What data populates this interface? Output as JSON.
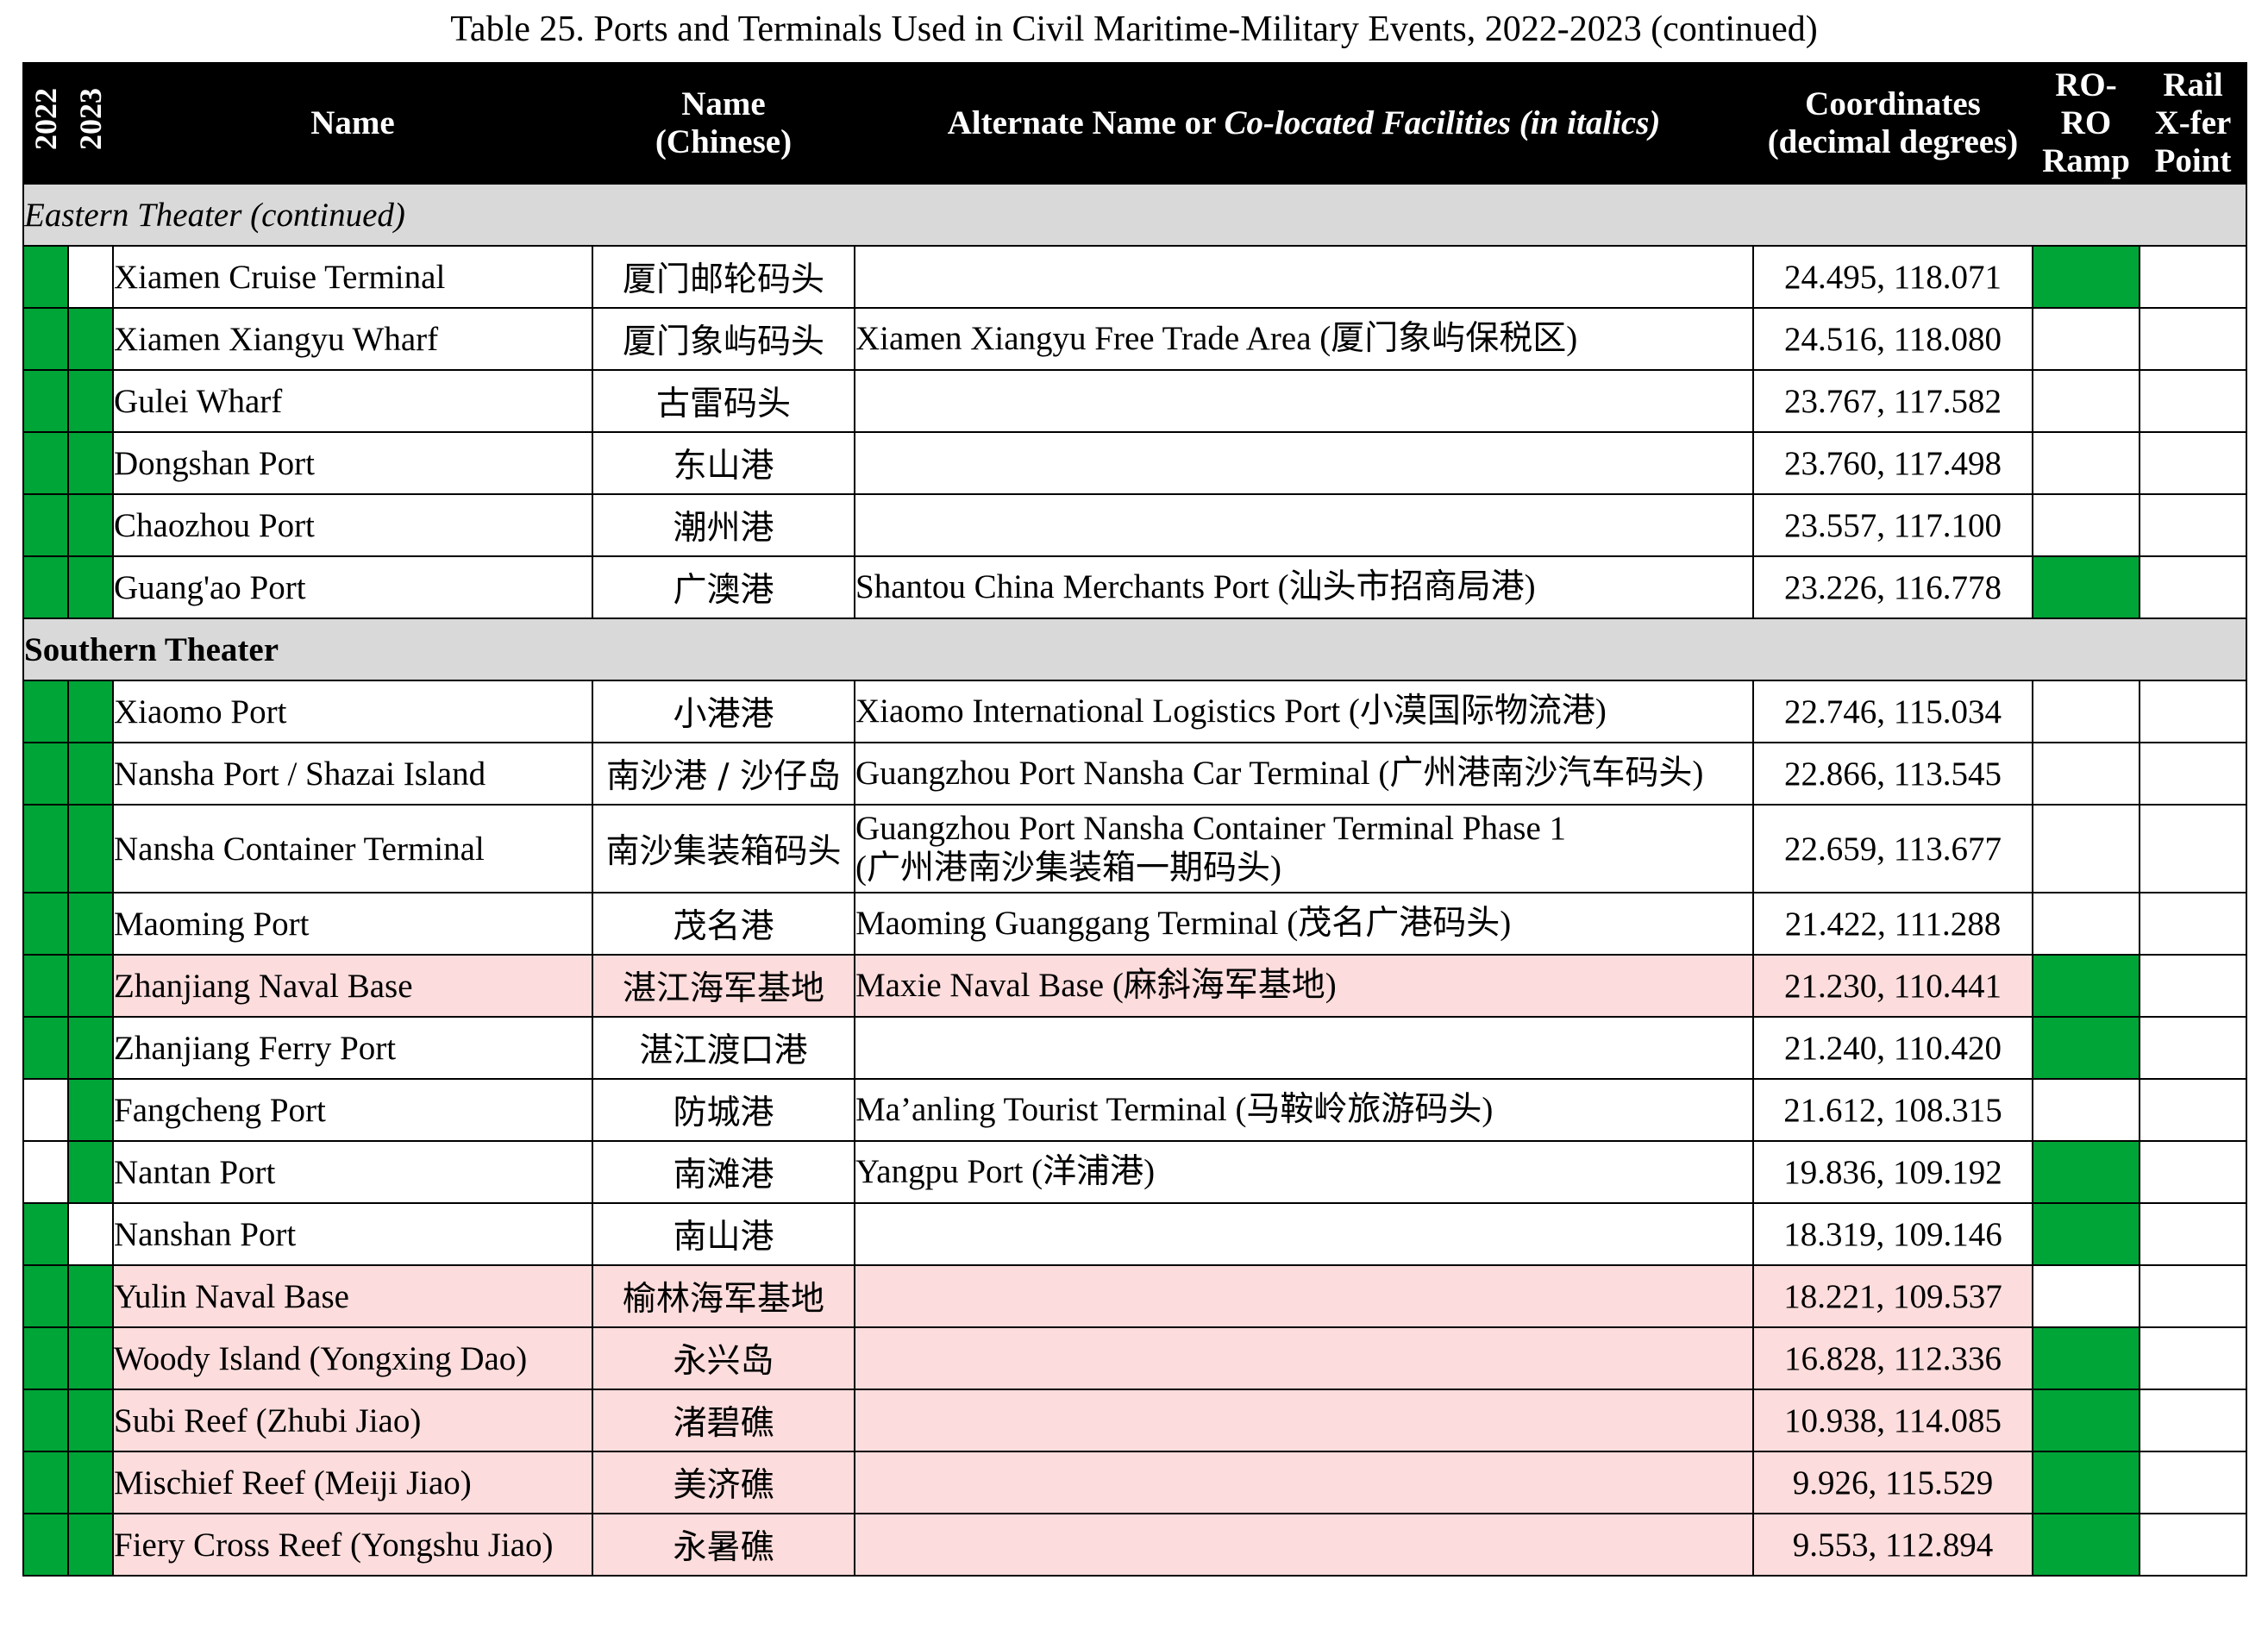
{
  "title": "Table 25. Ports and Terminals Used in Civil Maritime-Military Events, 2022-2023 (continued)",
  "colors": {
    "green": "#00a537",
    "naval_pink": "#fcdcdc",
    "theater_gray": "#d9d9d9",
    "header_black": "#000000"
  },
  "headers": {
    "year1": "2022",
    "year2": "2023",
    "name": "Name",
    "name_cn_1": "Name",
    "name_cn_2": "(Chinese)",
    "alt_plain": "Alternate Name or ",
    "alt_italic": "Co-located Facilities (in italics)",
    "coord_1": "Coordinates",
    "coord_2": "(decimal degrees)",
    "roro_1": "RO-RO",
    "roro_2": "Ramp",
    "rail_1": "Rail",
    "rail_2": "X-fer",
    "rail_3": "Point"
  },
  "sections": [
    {
      "label": "Eastern Theater (continued)",
      "style": "italic",
      "rows": [
        {
          "y2022": true,
          "y2023": false,
          "name": "Xiamen Cruise Terminal",
          "cn": "厦门邮轮码头",
          "alt": "",
          "alt2": "",
          "coords": "24.495, 118.071",
          "roro": true,
          "rail": false,
          "naval": false
        },
        {
          "y2022": true,
          "y2023": true,
          "name": "Xiamen Xiangyu Wharf",
          "cn": "厦门象屿码头",
          "alt": "Xiamen Xiangyu Free Trade Area (厦门象屿保税区)",
          "alt2": "",
          "coords": "24.516, 118.080",
          "roro": false,
          "rail": false,
          "naval": false
        },
        {
          "y2022": true,
          "y2023": true,
          "name": "Gulei Wharf",
          "cn": "古雷码头",
          "alt": "",
          "alt2": "",
          "coords": "23.767, 117.582",
          "roro": false,
          "rail": false,
          "naval": false
        },
        {
          "y2022": true,
          "y2023": true,
          "name": "Dongshan Port",
          "cn": "东山港",
          "alt": "",
          "alt2": "",
          "coords": "23.760, 117.498",
          "roro": false,
          "rail": false,
          "naval": false
        },
        {
          "y2022": true,
          "y2023": true,
          "name": "Chaozhou Port",
          "cn": "潮州港",
          "alt": "",
          "alt2": "",
          "coords": "23.557, 117.100",
          "roro": false,
          "rail": false,
          "naval": false
        },
        {
          "y2022": true,
          "y2023": true,
          "name": "Guang'ao Port",
          "cn": "广澳港",
          "alt": "Shantou China Merchants Port (汕头市招商局港)",
          "alt2": "",
          "coords": "23.226, 116.778",
          "roro": true,
          "rail": false,
          "naval": false
        }
      ]
    },
    {
      "label": "Southern Theater",
      "style": "bold",
      "rows": [
        {
          "y2022": true,
          "y2023": true,
          "name": "Xiaomo Port",
          "cn": "小港港",
          "alt": "Xiaomo International Logistics Port (小漠国际物流港)",
          "alt2": "",
          "coords": "22.746, 115.034",
          "roro": false,
          "rail": false,
          "naval": false
        },
        {
          "y2022": true,
          "y2023": true,
          "name": "Nansha Port / Shazai Island",
          "cn": "南沙港 / 沙仔岛",
          "alt": "Guangzhou Port Nansha Car Terminal (广州港南沙汽车码头)",
          "alt2": "",
          "coords": "22.866, 113.545",
          "roro": false,
          "rail": false,
          "naval": false
        },
        {
          "y2022": true,
          "y2023": true,
          "name": "Nansha Container Terminal",
          "cn": "南沙集装箱码头",
          "alt": "Guangzhou Port Nansha Container Terminal Phase 1",
          "alt2": "(广州港南沙集装箱一期码头)",
          "coords": "22.659, 113.677",
          "roro": false,
          "rail": false,
          "naval": false
        },
        {
          "y2022": true,
          "y2023": true,
          "name": "Maoming Port",
          "cn": "茂名港",
          "alt": "Maoming Guanggang Terminal (茂名广港码头)",
          "alt2": "",
          "coords": "21.422, 111.288",
          "roro": false,
          "rail": false,
          "naval": false
        },
        {
          "y2022": true,
          "y2023": true,
          "name": "Zhanjiang Naval Base",
          "cn": "湛江海军基地",
          "alt": "Maxie Naval Base (麻斜海军基地)",
          "alt2": "",
          "coords": "21.230, 110.441",
          "roro": true,
          "rail": false,
          "naval": true
        },
        {
          "y2022": true,
          "y2023": true,
          "name": "Zhanjiang Ferry Port",
          "cn": "湛江渡口港",
          "alt": "",
          "alt2": "",
          "coords": "21.240, 110.420",
          "roro": true,
          "rail": false,
          "naval": false
        },
        {
          "y2022": false,
          "y2023": true,
          "name": "Fangcheng Port",
          "cn": "防城港",
          "alt": "Ma’anling Tourist Terminal (马鞍岭旅游码头)",
          "alt2": "",
          "coords": "21.612, 108.315",
          "roro": false,
          "rail": false,
          "naval": false
        },
        {
          "y2022": false,
          "y2023": true,
          "name": "Nantan Port",
          "cn": "南滩港",
          "alt": "Yangpu Port (洋浦港)",
          "alt2": "",
          "coords": "19.836, 109.192",
          "roro": true,
          "rail": false,
          "naval": false
        },
        {
          "y2022": true,
          "y2023": false,
          "name": "Nanshan Port",
          "cn": "南山港",
          "alt": "",
          "alt2": "",
          "coords": "18.319, 109.146",
          "roro": true,
          "rail": false,
          "naval": false
        },
        {
          "y2022": true,
          "y2023": true,
          "name": "Yulin Naval Base",
          "cn": "榆林海军基地",
          "alt": "",
          "alt2": "",
          "coords": "18.221, 109.537",
          "roro": false,
          "rail": false,
          "naval": true
        },
        {
          "y2022": true,
          "y2023": true,
          "name": "Woody Island (Yongxing Dao)",
          "cn": "永兴岛",
          "alt": "",
          "alt2": "",
          "coords": "16.828, 112.336",
          "roro": true,
          "rail": false,
          "naval": true
        },
        {
          "y2022": true,
          "y2023": true,
          "name": "Subi Reef (Zhubi Jiao)",
          "cn": "渚碧礁",
          "alt": "",
          "alt2": "",
          "coords": "10.938, 114.085",
          "roro": true,
          "rail": false,
          "naval": true
        },
        {
          "y2022": true,
          "y2023": true,
          "name": "Mischief Reef (Meiji Jiao)",
          "cn": "美济礁",
          "alt": "",
          "alt2": "",
          "coords": "9.926, 115.529",
          "roro": true,
          "rail": false,
          "naval": true
        },
        {
          "y2022": true,
          "y2023": true,
          "name": "Fiery Cross Reef (Yongshu Jiao)",
          "cn": "永暑礁",
          "alt": "",
          "alt2": "",
          "coords": "9.553, 112.894",
          "roro": true,
          "rail": false,
          "naval": true
        }
      ]
    }
  ]
}
